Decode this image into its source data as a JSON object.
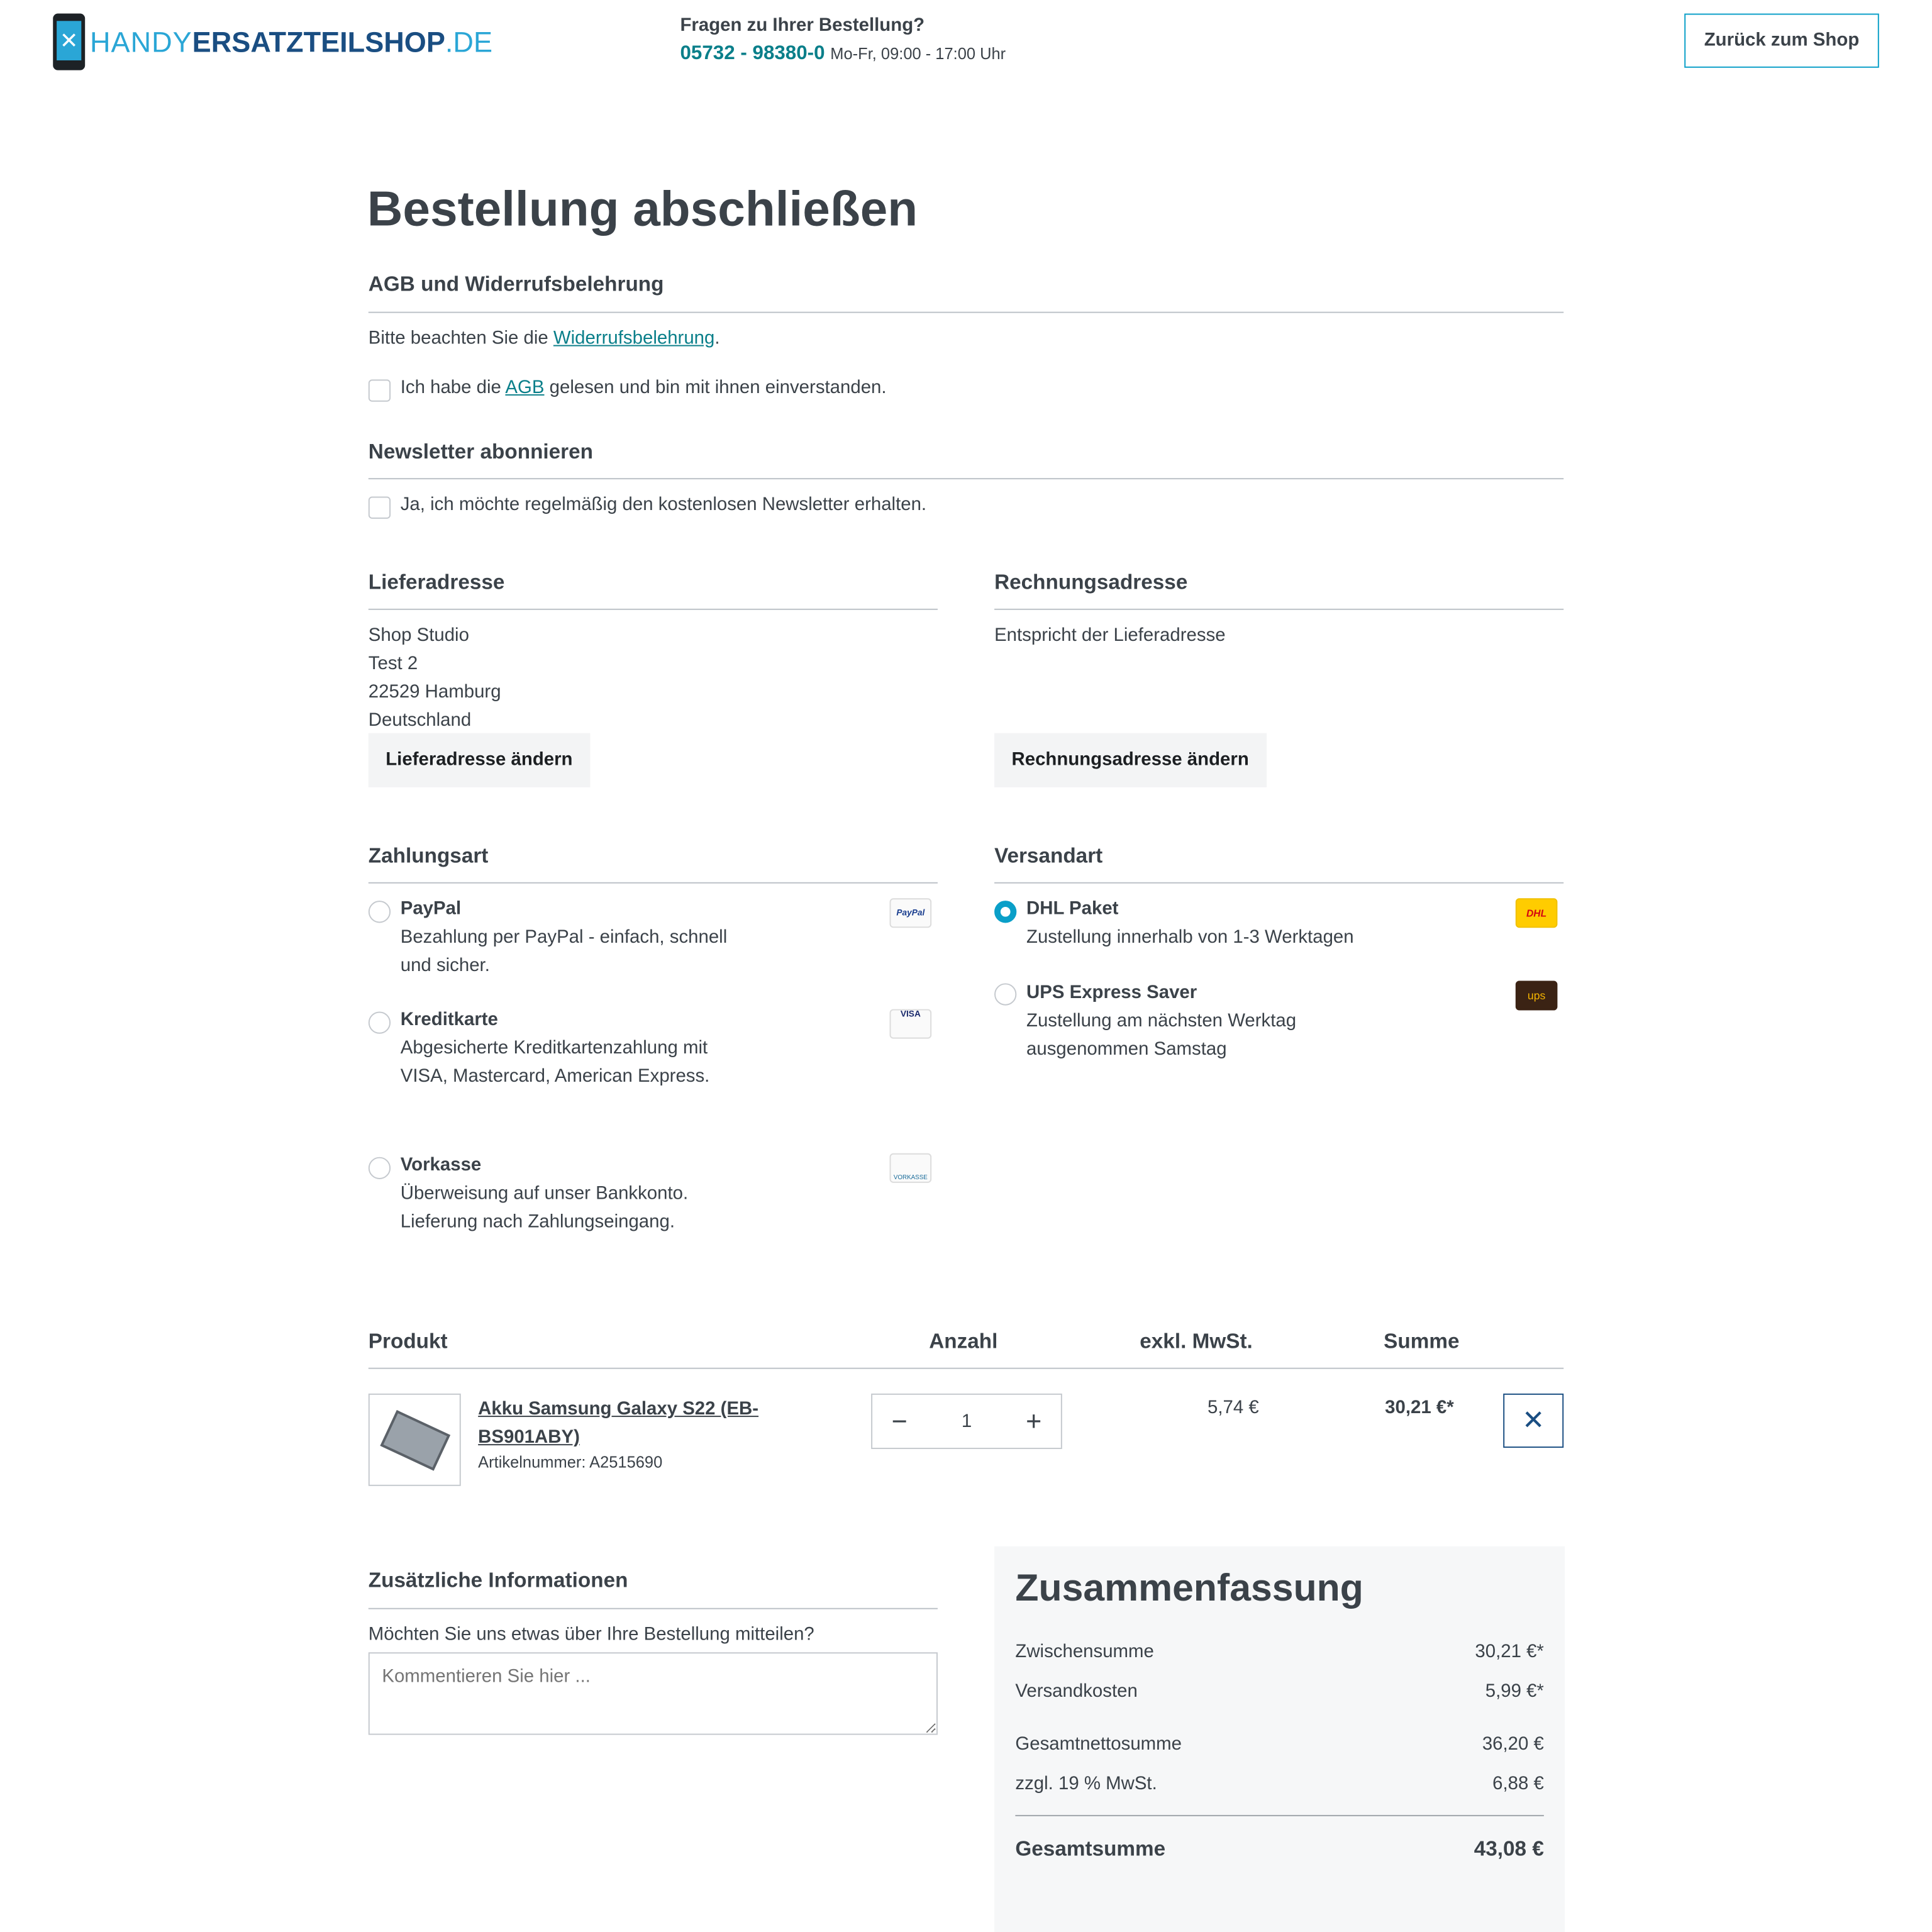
{
  "header": {
    "logo_text_light": "HANDY",
    "logo_text_bold": "ERSATZTEILSHOP",
    "logo_text_tld": ".DE",
    "question": "Fragen zu Ihrer Bestellung?",
    "phone": "05732 - 98380-0",
    "hours": "Mo-Fr, 09:00 - 17:00 Uhr",
    "back_button": "Zurück zum Shop"
  },
  "page_title": "Bestellung abschließen",
  "agb": {
    "heading": "AGB und Widerrufsbelehrung",
    "notice_pre": "Bitte beachten Sie die ",
    "notice_link": "Widerrufsbelehrung",
    "notice_post": ".",
    "checkbox_pre": "Ich habe die ",
    "checkbox_link": "AGB",
    "checkbox_post": " gelesen und bin mit ihnen einverstanden.",
    "checked": false
  },
  "newsletter": {
    "heading": "Newsletter abonnieren",
    "checkbox_label": "Ja, ich möchte regelmäßig den kostenlosen Newsletter erhalten.",
    "checked": false
  },
  "shipping_address": {
    "heading": "Lieferadresse",
    "lines": [
      "Shop Studio",
      "Test 2",
      "22529 Hamburg",
      "Deutschland"
    ],
    "change_button": "Lieferadresse ändern"
  },
  "billing_address": {
    "heading": "Rechnungsadresse",
    "text": "Entspricht der Lieferadresse",
    "change_button": "Rechnungsadresse ändern"
  },
  "payment": {
    "heading": "Zahlungsart",
    "options": [
      {
        "title": "PayPal",
        "desc1": "Bezahlung per PayPal - einfach, schnell",
        "desc2": "und sicher.",
        "icon": "paypal-logo",
        "icon_text": "PayPal",
        "selected": false
      },
      {
        "title": "Kreditkarte",
        "desc1": "Abgesicherte Kreditkartenzahlung mit",
        "desc2": "VISA, Mastercard, American Express.",
        "icon": "credit-card-logos",
        "icon_text": "VISA",
        "selected": false
      },
      {
        "title": "Vorkasse",
        "desc1": "Überweisung auf unser Bankkonto.",
        "desc2": "Lieferung nach Zahlungseingang.",
        "icon": "vorkasse-logo",
        "icon_text": "VORKASSE",
        "selected": false
      }
    ]
  },
  "shipping": {
    "heading": "Versandart",
    "options": [
      {
        "title": "DHL Paket",
        "desc1": "Zustellung innerhalb von 1-3 Werktagen",
        "desc2": "",
        "icon": "dhl-logo",
        "icon_text": "DHL",
        "selected": true
      },
      {
        "title": "UPS Express Saver",
        "desc1": "Zustellung am nächsten Werktag",
        "desc2": "ausgenommen Samstag",
        "icon": "ups-logo",
        "icon_text": "ups",
        "selected": false
      }
    ]
  },
  "cart": {
    "headers": {
      "product": "Produkt",
      "quantity": "Anzahl",
      "net": "exkl. MwSt.",
      "total": "Summe"
    },
    "items": [
      {
        "name1": "Akku Samsung Galaxy S22 (EB-",
        "name2": "BS901ABY)",
        "sku": "Artikelnummer: A2515690",
        "quantity": "1",
        "net": "5,74 €",
        "total": "30,21 €*"
      }
    ]
  },
  "additional": {
    "heading": "Zusätzliche Informationen",
    "question": "Möchten Sie uns etwas über Ihre Bestellung mitteilen?",
    "placeholder": "Kommentieren Sie hier ..."
  },
  "summary": {
    "heading": "Zusammenfassung",
    "rows": [
      {
        "label": "Zwischensumme",
        "value": "30,21 €*"
      },
      {
        "label": "Versandkosten",
        "value": "5,99 €*"
      },
      {
        "label": "Gesamtnettosumme",
        "value": "36,20 €"
      },
      {
        "label": "zzgl. 19 % MwSt.",
        "value": "6,88 €"
      }
    ],
    "total_label": "Gesamtsumme",
    "total_value": "43,08 €"
  },
  "colors": {
    "accent": "#0a7f8a",
    "radio_selected": "#0a9fc8",
    "text": "#3b4249",
    "summary_bg": "#f6f7f8"
  }
}
